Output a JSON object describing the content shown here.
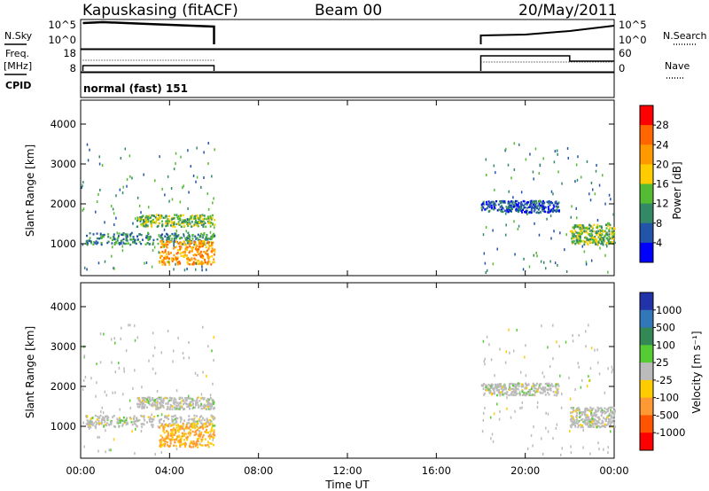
{
  "header": {
    "station": "Kapuskasing (fitACF)",
    "beam": "Beam 00",
    "date": "20/May/2011"
  },
  "side_labels": {
    "nsky": "N.Sky",
    "freq": "Freq.",
    "mhz": "[MHz]",
    "cpid": "CPID",
    "nsearch": "N.Search",
    "nave": "Nave"
  },
  "cpid_text": "normal (fast) 151",
  "noise_axis_left": [
    "10^5",
    "10^0"
  ],
  "noise_axis_right": [
    "10^5",
    "10^0"
  ],
  "freq_axis_left": [
    "18",
    "8"
  ],
  "nave_axis_right": [
    "60",
    "0"
  ],
  "time_ticks": [
    "00:00",
    "04:00",
    "08:00",
    "12:00",
    "16:00",
    "20:00",
    "00:00"
  ],
  "xlabel": "Time UT",
  "ylabel": "Slant Range [km]",
  "range_ticks": [
    "1000",
    "2000",
    "3000",
    "4000"
  ],
  "power_colorbar": {
    "label": "Power [dB]",
    "ticks": [
      "28",
      "24",
      "20",
      "16",
      "12",
      "8",
      "4"
    ],
    "colors": [
      "#ff0000",
      "#ff6600",
      "#ff9900",
      "#ffcc00",
      "#55bb33",
      "#338866",
      "#2255aa",
      "#0000ff"
    ]
  },
  "velocity_colorbar": {
    "label": "Velocity [m s⁻¹]",
    "ticks": [
      "1000",
      "500",
      "100",
      "25",
      "-25",
      "-100",
      "-500",
      "-1000"
    ],
    "colors": [
      "#2233aa",
      "#3377bb",
      "#338855",
      "#55cc33",
      "#bbbbbb",
      "#ffcc00",
      "#ff9933",
      "#ff5500",
      "#ff0000"
    ]
  },
  "chart_data": [
    {
      "type": "heatmap",
      "name": "power",
      "x_range_hours": [
        0,
        24
      ],
      "y_range_km": [
        200,
        4600
      ],
      "regions": [
        {
          "x": [
            0.2,
            6.0
          ],
          "y": [
            1000,
            1300
          ],
          "level": 8
        },
        {
          "x": [
            2.5,
            6.0
          ],
          "y": [
            1450,
            1750
          ],
          "level": 12
        },
        {
          "x": [
            3.5,
            6.0
          ],
          "y": [
            500,
            1100
          ],
          "level": 20
        },
        {
          "x": [
            18.0,
            21.5
          ],
          "y": [
            1800,
            2100
          ],
          "level": 4
        },
        {
          "x": [
            22.0,
            24.0
          ],
          "y": [
            1000,
            1500
          ],
          "level": 12
        }
      ]
    },
    {
      "type": "heatmap",
      "name": "velocity",
      "x_range_hours": [
        0,
        24
      ],
      "y_range_km": [
        200,
        4600
      ],
      "regions": [
        {
          "x": [
            0.2,
            6.0
          ],
          "y": [
            1000,
            1300
          ],
          "level": 0
        },
        {
          "x": [
            2.5,
            6.0
          ],
          "y": [
            1450,
            1750
          ],
          "level": 0
        },
        {
          "x": [
            3.5,
            6.0
          ],
          "y": [
            500,
            1100
          ],
          "level": -100
        },
        {
          "x": [
            18.0,
            21.5
          ],
          "y": [
            1800,
            2100
          ],
          "level": 0
        },
        {
          "x": [
            22.0,
            24.0
          ],
          "y": [
            1000,
            1500
          ],
          "level": 0
        }
      ]
    }
  ]
}
